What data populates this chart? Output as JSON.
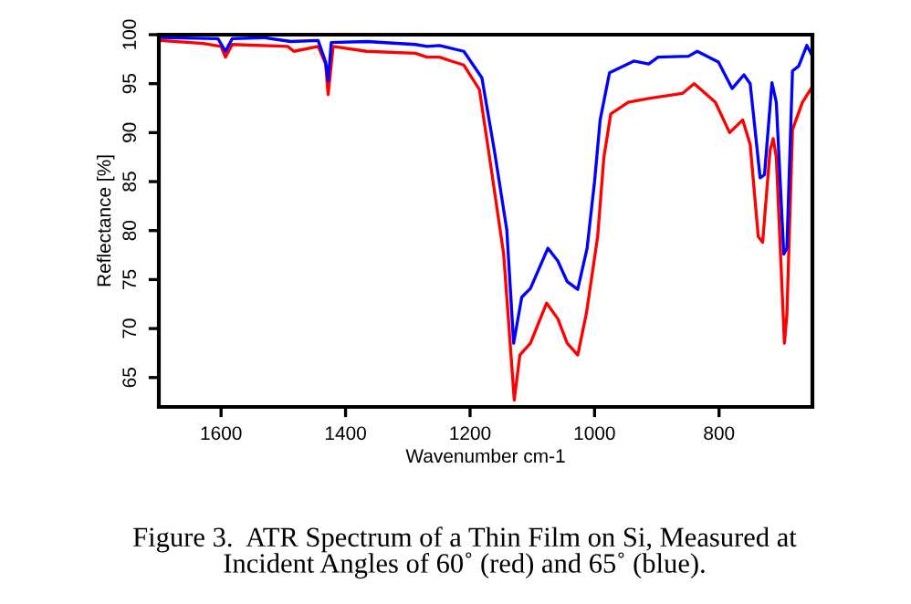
{
  "chart_data": {
    "type": "line",
    "xlabel": "Wavenumber cm-1",
    "ylabel": "Reflectance [%]",
    "annotations": [
      "Figure 3.  ATR Spectrum of a Thin Film on Si, Measured at\nIncident Angles of 60˚ (red) and 65˚ (blue)."
    ],
    "xlim": [
      1700,
      650
    ],
    "ylim": [
      62,
      100
    ],
    "xticks": [
      1600,
      1400,
      1200,
      1000,
      800
    ],
    "yticks": [
      65,
      70,
      75,
      80,
      85,
      90,
      95,
      100
    ],
    "grid": false,
    "legend": false,
    "line_style": "solid",
    "marker": "none",
    "series": [
      {
        "color": "#ff0000",
        "x": [
          1696,
          1629,
          1600,
          1593,
          1582,
          1493,
          1483,
          1444,
          1432,
          1428,
          1420,
          1366,
          1288,
          1269,
          1249,
          1230,
          1210,
          1185,
          1166,
          1146,
          1129,
          1120,
          1103,
          1077,
          1059,
          1044,
          1027,
          1013,
          995,
          985,
          974,
          946,
          913,
          859,
          840,
          806,
          783,
          762,
          750,
          737,
          730,
          718,
          713,
          708,
          695,
          691,
          682,
          666,
          650
        ],
        "values": [
          99.4,
          99.1,
          98.8,
          97.7,
          99.0,
          98.8,
          98.3,
          98.8,
          97.0,
          93.9,
          98.8,
          98.3,
          98.1,
          97.7,
          97.7,
          97.3,
          96.9,
          94.4,
          86.3,
          77.6,
          62.7,
          67.3,
          68.5,
          72.6,
          71.0,
          68.5,
          67.3,
          71.6,
          79.4,
          87.5,
          91.9,
          93.1,
          93.5,
          94.0,
          95.0,
          93.1,
          90.0,
          91.3,
          88.8,
          79.4,
          78.8,
          88.2,
          89.4,
          87.5,
          68.5,
          71.4,
          90.3,
          93.1,
          94.7
        ]
      },
      {
        "color": "#0000ff",
        "x": [
          1696,
          1605,
          1593,
          1582,
          1532,
          1488,
          1444,
          1432,
          1428,
          1423,
          1366,
          1288,
          1269,
          1249,
          1210,
          1181,
          1161,
          1141,
          1130,
          1117,
          1103,
          1075,
          1059,
          1044,
          1027,
          1012,
          1000,
          991,
          976,
          937,
          913,
          898,
          849,
          835,
          801,
          779,
          760,
          750,
          734,
          727,
          715,
          708,
          696,
          691,
          682,
          672,
          659,
          650
        ],
        "values": [
          99.7,
          99.6,
          98.3,
          99.6,
          99.7,
          99.3,
          99.4,
          97.2,
          95.3,
          99.2,
          99.3,
          99.0,
          98.8,
          98.9,
          98.3,
          95.6,
          88.2,
          80.1,
          68.5,
          73.2,
          74.1,
          78.2,
          76.9,
          74.8,
          74.0,
          78.2,
          85.0,
          91.3,
          96.1,
          97.3,
          97.0,
          97.7,
          97.8,
          98.3,
          97.2,
          94.5,
          95.9,
          95.0,
          85.4,
          85.7,
          95.1,
          93.1,
          77.6,
          78.2,
          96.3,
          96.8,
          98.9,
          97.8
        ]
      }
    ]
  }
}
